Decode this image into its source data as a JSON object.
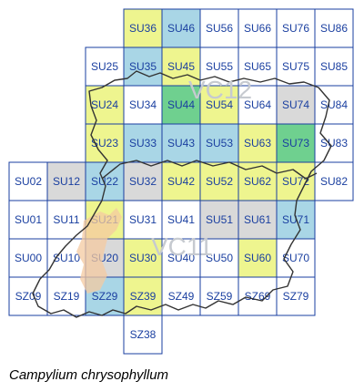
{
  "species": "Campylium chrysophyllum",
  "colors": {
    "gray": "#d9d9d9",
    "yellow": "#eef58f",
    "blue": "#a9d6e6",
    "green": "#6fd08f",
    "white": "#ffffff",
    "grid": "#1a3fa0",
    "label": "#1a3fa0",
    "county_fill": "#f4c9a0",
    "boundary": "#333333"
  },
  "vice_counties": [
    "VC12",
    "VC11"
  ],
  "grid_rows": [
    [
      "",
      "",
      "",
      "SU36",
      "SU46",
      "SU56",
      "SU66",
      "SU76",
      "SU86"
    ],
    [
      "",
      "",
      "SU25",
      "SU35",
      "SU45",
      "SU55",
      "SU65",
      "SU75",
      "SU85"
    ],
    [
      "",
      "",
      "SU24",
      "SU34",
      "SU44",
      "SU54",
      "SU64",
      "SU74",
      "SU84"
    ],
    [
      "",
      "",
      "SU23",
      "SU33",
      "SU43",
      "SU53",
      "SU63",
      "SU73",
      "SU83"
    ],
    [
      "SU02",
      "SU12",
      "SU22",
      "SU32",
      "SU42",
      "SU52",
      "SU62",
      "SU72",
      "SU82"
    ],
    [
      "SU01",
      "SU11",
      "SU21",
      "SU31",
      "SU41",
      "SU51",
      "SU61",
      "SU71",
      ""
    ],
    [
      "SU00",
      "SU10",
      "SU20",
      "SU30",
      "SU40",
      "SU50",
      "SU60",
      "SU70",
      ""
    ],
    [
      "SZ09",
      "SZ19",
      "SZ29",
      "SZ39",
      "SZ49",
      "SZ59",
      "SZ69",
      "SZ79",
      ""
    ],
    [
      "",
      "",
      "",
      "SZ38",
      "",
      "",
      "",
      "",
      ""
    ]
  ],
  "status_rows": [
    [
      "",
      "",
      "",
      "yellow",
      "blue",
      "white",
      "white",
      "white",
      "white"
    ],
    [
      "",
      "",
      "white",
      "blue",
      "yellow",
      "white",
      "white",
      "white",
      "white"
    ],
    [
      "",
      "",
      "yellow",
      "white",
      "green",
      "yellow",
      "white",
      "gray",
      "white"
    ],
    [
      "",
      "",
      "yellow",
      "blue",
      "blue",
      "blue",
      "yellow",
      "green",
      "white"
    ],
    [
      "white",
      "gray",
      "blue",
      "gray",
      "yellow",
      "yellow",
      "yellow",
      "yellow",
      "white"
    ],
    [
      "white",
      "white",
      "yellow",
      "white",
      "white",
      "gray",
      "gray",
      "blue",
      ""
    ],
    [
      "white",
      "white",
      "gray",
      "yellow",
      "white",
      "white",
      "yellow",
      "white",
      ""
    ],
    [
      "white",
      "white",
      "blue",
      "yellow",
      "white",
      "white",
      "white",
      "white",
      ""
    ],
    [
      "",
      "",
      "",
      "white",
      "",
      "",
      "",
      "",
      ""
    ]
  ]
}
